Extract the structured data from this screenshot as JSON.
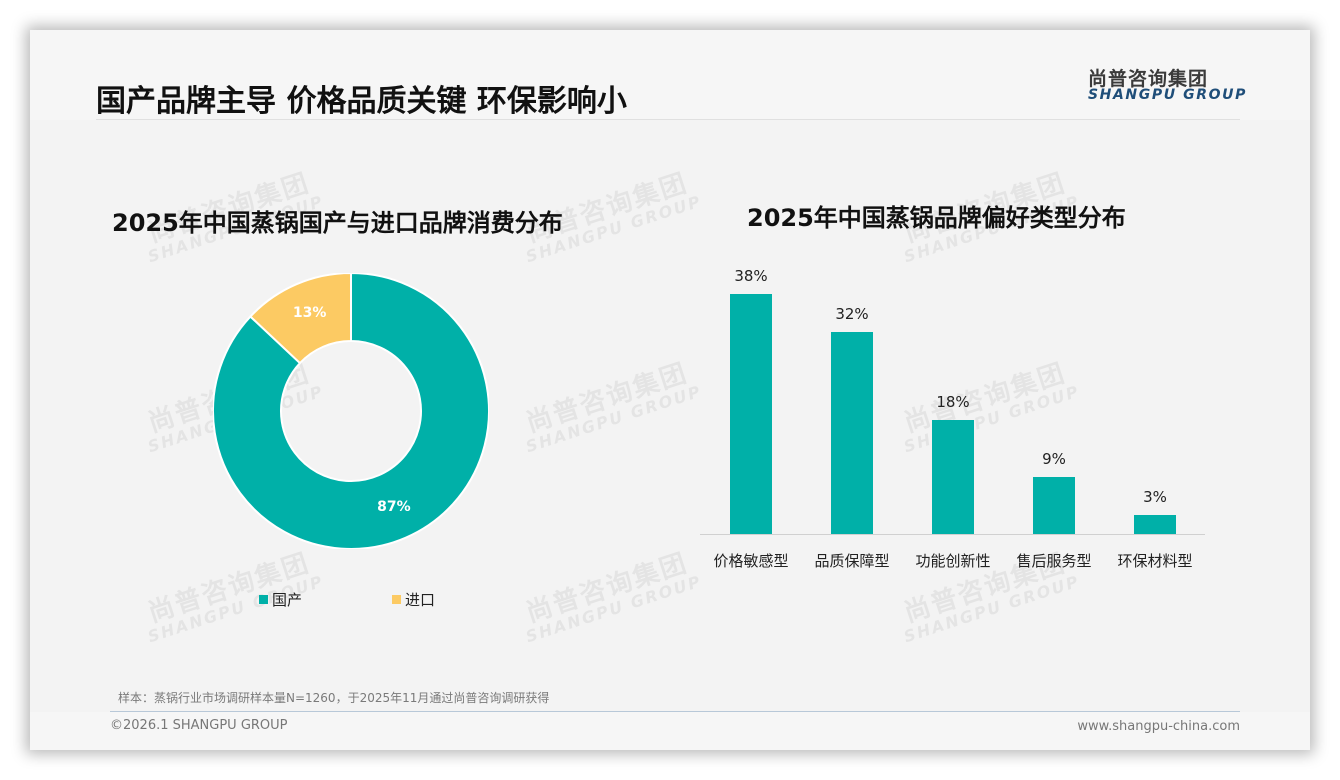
{
  "header": {
    "title": "国产品牌主导 价格品质关键 环保影响小",
    "logo_cn": "尚普咨询集团",
    "logo_en": "SHANGPU GROUP"
  },
  "watermark": {
    "cn": "尚普咨询集团",
    "en": "SHANGPU GROUP"
  },
  "left_chart": {
    "title": "2025年中国蒸锅国产与进口品牌消费分布",
    "slices": [
      {
        "label": "国产",
        "value": 87,
        "display": "87%",
        "color": "#00b0a8"
      },
      {
        "label": "进口",
        "value": 13,
        "display": "13%",
        "color": "#fcca63"
      }
    ],
    "legend": [
      {
        "label": "国产",
        "color": "#00b0a8"
      },
      {
        "label": "进口",
        "color": "#fcca63"
      }
    ]
  },
  "right_chart": {
    "title": "2025年中国蒸锅品牌偏好类型分布",
    "bar_color": "#00b0a8",
    "bars": [
      {
        "category": "价格敏感型",
        "value": 38,
        "display": "38%"
      },
      {
        "category": "品质保障型",
        "value": 32,
        "display": "32%"
      },
      {
        "category": "功能创新性",
        "value": 18,
        "display": "18%"
      },
      {
        "category": "售后服务型",
        "value": 9,
        "display": "9%"
      },
      {
        "category": "环保材料型",
        "value": 3,
        "display": "3%"
      }
    ]
  },
  "footer": {
    "note": "样本：蒸锅行业市场调研样本量N=1260，于2025年11月通过尚普咨询调研获得",
    "copyright": "©2026.1 SHANGPU GROUP",
    "website": "www.shangpu-china.com"
  },
  "chart_data": [
    {
      "type": "pie",
      "title": "2025年中国蒸锅国产与进口品牌消费分布",
      "categories": [
        "国产",
        "进口"
      ],
      "values": [
        87,
        13
      ],
      "unit": "%",
      "donut": true,
      "legend_position": "bottom",
      "colors": [
        "#00b0a8",
        "#fcca63"
      ]
    },
    {
      "type": "bar",
      "title": "2025年中国蒸锅品牌偏好类型分布",
      "categories": [
        "价格敏感型",
        "品质保障型",
        "功能创新性",
        "售后服务型",
        "环保材料型"
      ],
      "values": [
        38,
        32,
        18,
        9,
        3
      ],
      "unit": "%",
      "xlabel": "",
      "ylabel": "",
      "ylim": [
        0,
        40
      ],
      "grid": false,
      "data_labels": true
    }
  ]
}
